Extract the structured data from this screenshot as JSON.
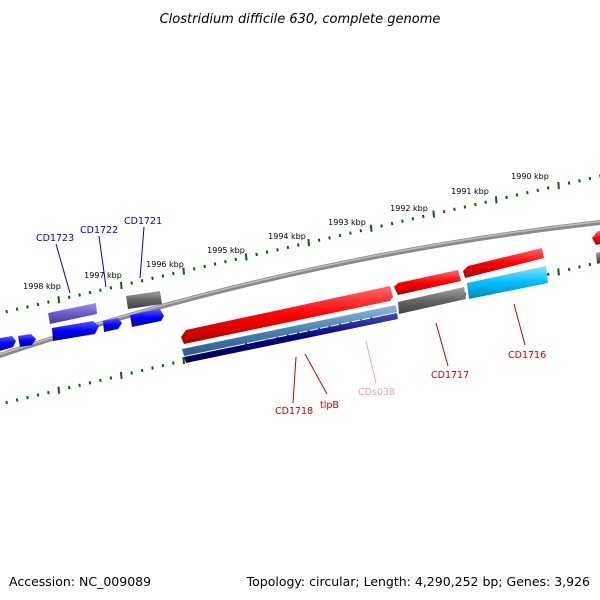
{
  "title": "Clostridium difficile 630, complete genome",
  "footer": {
    "accession": "Accession: NC_009089",
    "summary": "Topology: circular; Length: 4,290,252 bp; Genes: 3,926"
  },
  "scale": {
    "tick_labels": [
      "1990 kbp",
      "1991 kbp",
      "1992 kbp",
      "1993 kbp",
      "1994 kbp",
      "1995 kbp",
      "1996 kbp",
      "1997 kbp",
      "1998 kbp"
    ]
  },
  "gene_labels": {
    "cd1723": "CD1723",
    "cd1722": "CD1722",
    "cd1721": "CD1721",
    "cd1718": "CD1718",
    "tlpb": "tlpB",
    "cds038": "CDs038",
    "cd1717": "CD1717",
    "cd1716": "CD1716"
  },
  "colors": {
    "blue_label": "#0000cc",
    "red_label": "#cc0000",
    "pink_label": "#f4a0c8",
    "red_feature": "#ff0000",
    "blue_feature": "#0000ff",
    "purple_feature": "#6a5acd",
    "gray_feature": "#666666",
    "steel_feature": "#4682b4",
    "navy_feature": "#000080",
    "cyan_feature": "#00bfff",
    "tick_green": "#006600",
    "backbone": "#888888"
  }
}
